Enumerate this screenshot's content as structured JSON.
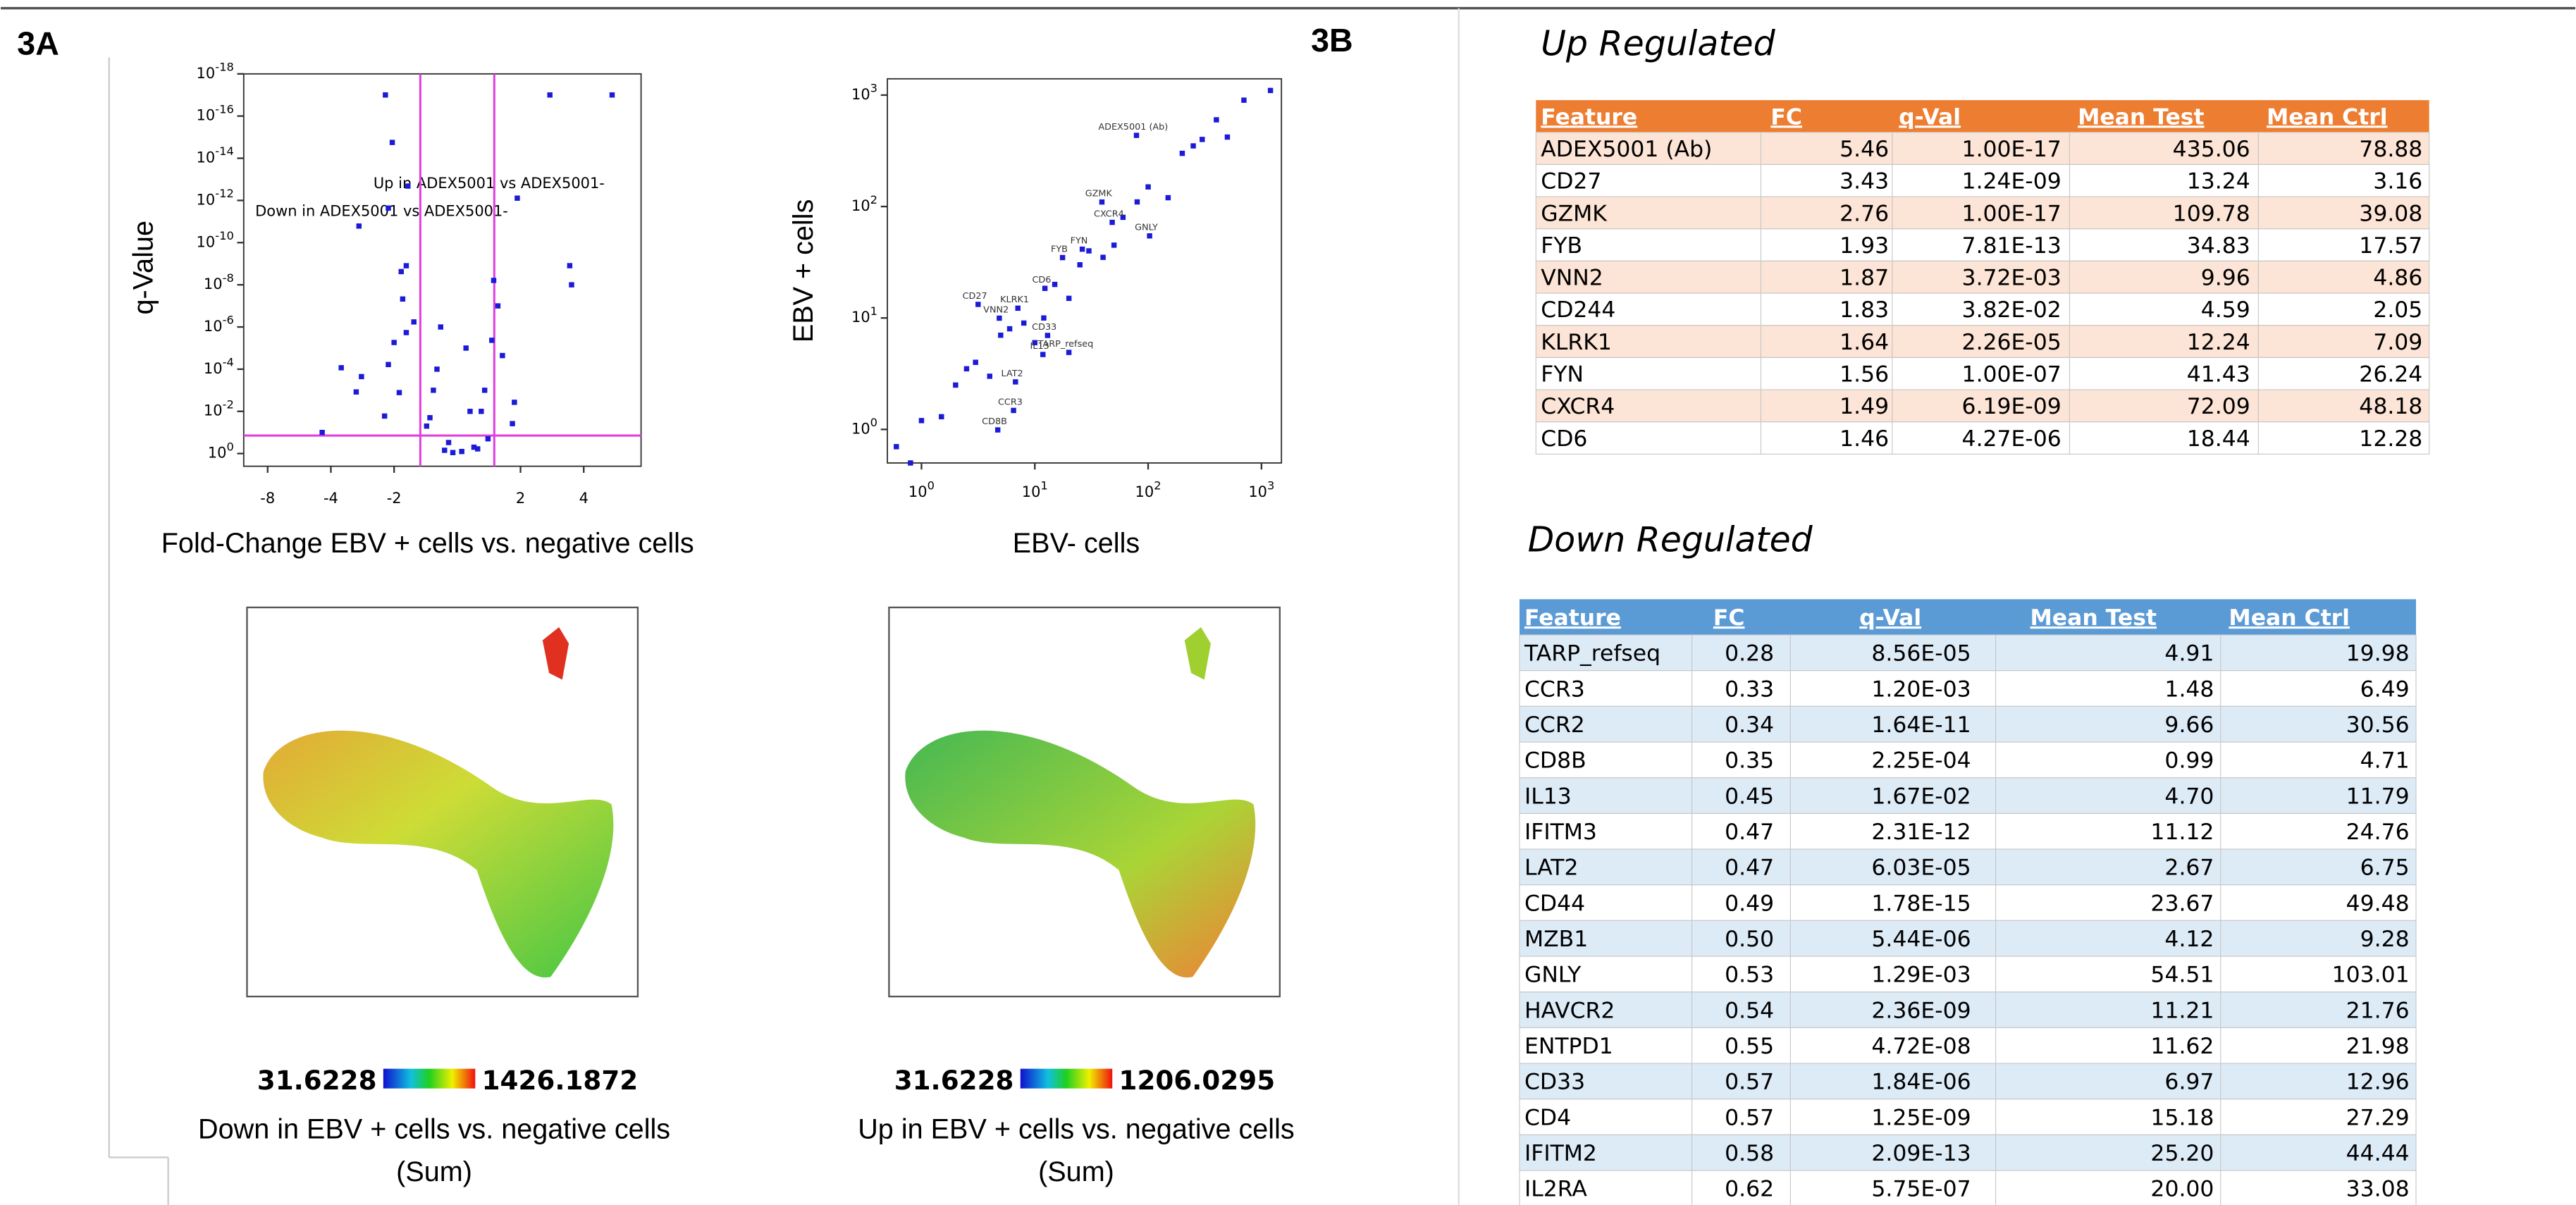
{
  "panels": {
    "a": "3A",
    "b": "3B"
  },
  "volcano": {
    "type": "scatter",
    "ylabel": "q-Value",
    "xlabel": "Fold-Change EBV + cells vs. negative cells",
    "xscale": "signed-log2",
    "yscale": "log-reversed",
    "color": "#1a1ad8",
    "line_color": "#e040e0",
    "annotations": [
      "Up in ADEX5001 vs ADEX5001-",
      "Down in ADEX5001 vs ADEX5001-"
    ],
    "xlim": [
      -10.4,
      7.5
    ],
    "ylim": [
      4,
      1e-18
    ],
    "xticks": [
      -8,
      -4,
      -2,
      2,
      4
    ],
    "yticks": [
      {
        "value": 1,
        "base": "10",
        "exponent": "0"
      },
      {
        "value": 0.01,
        "base": "10",
        "exponent": "-2"
      },
      {
        "value": 0.0001,
        "base": "10",
        "exponent": "-4"
      },
      {
        "value": 1e-06,
        "base": "10",
        "exponent": "-6"
      },
      {
        "value": 1e-08,
        "base": "10",
        "exponent": "-8"
      },
      {
        "value": 1e-10,
        "base": "10",
        "exponent": "-10"
      },
      {
        "value": 1e-12,
        "base": "10",
        "exponent": "-12"
      },
      {
        "value": 1e-14,
        "base": "10",
        "exponent": "-14"
      },
      {
        "value": 1e-16,
        "base": "10",
        "exponent": "-16"
      },
      {
        "value": 1e-18,
        "base": "10",
        "exponent": "-18"
      }
    ],
    "fc_thresholds": [
      -1.5,
      1.5
    ],
    "q_threshold": 0.14,
    "x": [
      5.46,
      3.43,
      2.76,
      1.93,
      1.87,
      1.83,
      1.64,
      1.56,
      1.49,
      1.46,
      -3.57,
      -3.03,
      -2.94,
      -2.86,
      -2.22,
      -2.13,
      -2.13,
      -2.04,
      -2,
      -1.89,
      -1.85,
      -1.82,
      -1.75,
      -1.75,
      -1.72,
      -1.61,
      1.2,
      -1.1,
      1.3,
      -1.3,
      1.1,
      -1.2,
      1.05,
      -1.05,
      1.4,
      -1.4,
      1.15,
      -1.25,
      3.5,
      -2.2,
      -4.4,
      1.25,
      -1.15,
      1.35,
      -1.35
    ],
    "y": [
      1e-17,
      1.24e-09,
      1e-17,
      7.81e-13,
      0.00372,
      0.0382,
      2.26e-05,
      1e-07,
      6.19e-09,
      4.27e-06,
      8.56e-05,
      0.0012,
      1.64e-11,
      0.000225,
      0.0167,
      2.31e-12,
      6.03e-05,
      1.78e-15,
      5.44e-06,
      0.00129,
      2.36e-09,
      4.72e-08,
      1.84e-06,
      1.25e-09,
      2.09e-13,
      5.75e-07,
      0.5,
      0.3,
      0.01,
      0.001,
      1e-05,
      1e-06,
      0.8,
      0.9,
      0.2,
      0.05,
      0.01,
      0.0001,
      1e-08,
      1e-17,
      0.1,
      0.6,
      0.7,
      0.001,
      0.02
    ]
  },
  "scatter": {
    "type": "scatter",
    "xscale": "log",
    "yscale": "log",
    "xlabel": "EBV- cells",
    "ylabel": "EBV + cells",
    "color": "#1a1ad8",
    "xlim": [
      0.5,
      1500
    ],
    "ylim": [
      0.5,
      1400
    ],
    "xticks": [
      {
        "value": 1,
        "base": "10",
        "exponent": "0"
      },
      {
        "value": 10,
        "base": "10",
        "exponent": "1"
      },
      {
        "value": 100,
        "base": "10",
        "exponent": "2"
      },
      {
        "value": 1000,
        "base": "10",
        "exponent": "3"
      }
    ],
    "yticks": [
      {
        "value": 1,
        "base": "10",
        "exponent": "0"
      },
      {
        "value": 10,
        "base": "10",
        "exponent": "1"
      },
      {
        "value": 100,
        "base": "10",
        "exponent": "2"
      },
      {
        "value": 1000,
        "base": "10",
        "exponent": "3"
      }
    ],
    "x": [
      0.6,
      1,
      2,
      3,
      5,
      8,
      15,
      30,
      60,
      100,
      200,
      400,
      1200,
      0.8,
      4,
      10,
      20,
      50,
      150,
      300,
      700,
      1.5,
      2.5,
      6,
      12,
      25,
      40,
      80,
      250,
      500
    ],
    "y": [
      0.7,
      1.2,
      2.5,
      4,
      7,
      9,
      20,
      40,
      80,
      150,
      300,
      600,
      1100,
      0.5,
      3,
      6,
      15,
      45,
      120,
      400,
      900,
      1.3,
      3.5,
      8,
      10,
      30,
      35,
      110,
      350,
      420
    ],
    "labels": [
      {
        "text": "ADEX5001 (Ab)",
        "x": 78.88,
        "y": 435.06
      },
      {
        "text": "GZMK",
        "x": 39.08,
        "y": 109.78
      },
      {
        "text": "CXCR4",
        "x": 48.18,
        "y": 72.09
      },
      {
        "text": "GNLY",
        "x": 103.01,
        "y": 54.51
      },
      {
        "text": "FYB",
        "x": 17.57,
        "y": 34.83
      },
      {
        "text": "FYN",
        "x": 26.24,
        "y": 41.43
      },
      {
        "text": "CD27",
        "x": 3.16,
        "y": 13.24
      },
      {
        "text": "KLRK1",
        "x": 7.09,
        "y": 12.24
      },
      {
        "text": "VNN2",
        "x": 4.86,
        "y": 9.96
      },
      {
        "text": "CD6",
        "x": 12.28,
        "y": 18.44
      },
      {
        "text": "CD33",
        "x": 12.96,
        "y": 6.97
      },
      {
        "text": "TARP_refseq",
        "x": 19.98,
        "y": 4.91
      },
      {
        "text": "IL13",
        "x": 11.79,
        "y": 4.7
      },
      {
        "text": "LAT2",
        "x": 6.75,
        "y": 2.67
      },
      {
        "text": "CCR3",
        "x": 6.49,
        "y": 1.48
      },
      {
        "text": "CD8B",
        "x": 4.71,
        "y": 0.99
      }
    ]
  },
  "umaps": [
    {
      "min": "31.6228",
      "max": "1426.1872",
      "caption": "Down in EBV + cells vs. negative cells",
      "sub": "(Sum)"
    },
    {
      "min": "31.6228",
      "max": "1206.0295",
      "caption": "Up in EBV + cells vs. negative cells",
      "sub": "(Sum)"
    }
  ],
  "up_table": {
    "title": "Up Regulated",
    "columns": [
      "Feature",
      "FC",
      "q-Val",
      "Mean Test",
      "Mean Ctrl"
    ],
    "rows": [
      [
        "ADEX5001 (Ab)",
        "5.46",
        "1.00E-17",
        "435.06",
        "78.88"
      ],
      [
        "CD27",
        "3.43",
        "1.24E-09",
        "13.24",
        "3.16"
      ],
      [
        "GZMK",
        "2.76",
        "1.00E-17",
        "109.78",
        "39.08"
      ],
      [
        "FYB",
        "1.93",
        "7.81E-13",
        "34.83",
        "17.57"
      ],
      [
        "VNN2",
        "1.87",
        "3.72E-03",
        "9.96",
        "4.86"
      ],
      [
        "CD244",
        "1.83",
        "3.82E-02",
        "4.59",
        "2.05"
      ],
      [
        "KLRK1",
        "1.64",
        "2.26E-05",
        "12.24",
        "7.09"
      ],
      [
        "FYN",
        "1.56",
        "1.00E-07",
        "41.43",
        "26.24"
      ],
      [
        "CXCR4",
        "1.49",
        "6.19E-09",
        "72.09",
        "48.18"
      ],
      [
        "CD6",
        "1.46",
        "4.27E-06",
        "18.44",
        "12.28"
      ]
    ]
  },
  "down_table": {
    "title": "Down Regulated",
    "columns": [
      "Feature",
      "FC",
      "q-Val",
      "Mean Test",
      "Mean Ctrl"
    ],
    "rows": [
      [
        "TARP_refseq",
        "0.28",
        "8.56E-05",
        "4.91",
        "19.98"
      ],
      [
        "CCR3",
        "0.33",
        "1.20E-03",
        "1.48",
        "6.49"
      ],
      [
        "CCR2",
        "0.34",
        "1.64E-11",
        "9.66",
        "30.56"
      ],
      [
        "CD8B",
        "0.35",
        "2.25E-04",
        "0.99",
        "4.71"
      ],
      [
        "IL13",
        "0.45",
        "1.67E-02",
        "4.70",
        "11.79"
      ],
      [
        "IFITM3",
        "0.47",
        "2.31E-12",
        "11.12",
        "24.76"
      ],
      [
        "LAT2",
        "0.47",
        "6.03E-05",
        "2.67",
        "6.75"
      ],
      [
        "CD44",
        "0.49",
        "1.78E-15",
        "23.67",
        "49.48"
      ],
      [
        "MZB1",
        "0.50",
        "5.44E-06",
        "4.12",
        "9.28"
      ],
      [
        "GNLY",
        "0.53",
        "1.29E-03",
        "54.51",
        "103.01"
      ],
      [
        "HAVCR2",
        "0.54",
        "2.36E-09",
        "11.21",
        "21.76"
      ],
      [
        "ENTPD1",
        "0.55",
        "4.72E-08",
        "11.62",
        "21.98"
      ],
      [
        "CD33",
        "0.57",
        "1.84E-06",
        "6.97",
        "12.96"
      ],
      [
        "CD4",
        "0.57",
        "1.25E-09",
        "15.18",
        "27.29"
      ],
      [
        "IFITM2",
        "0.58",
        "2.09E-13",
        "25.20",
        "44.44"
      ],
      [
        "IL2RA",
        "0.62",
        "5.75E-07",
        "20.00",
        "33.08"
      ]
    ]
  }
}
